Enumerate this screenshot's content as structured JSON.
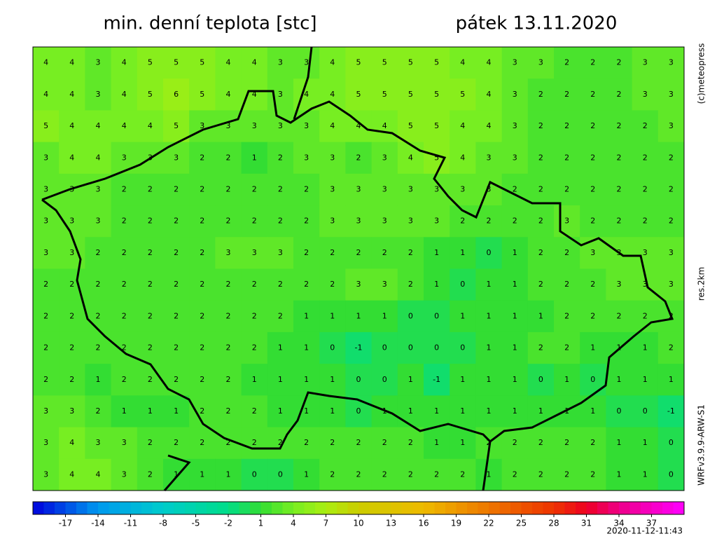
{
  "header": {
    "title": "min. denní teplota [stc]",
    "date": "pátek 13.11.2020"
  },
  "side": {
    "copyright": "(c)meteopress",
    "resolution": "res.2km",
    "model": "WRFv3.9.9-ARW-S1"
  },
  "map": {
    "grid": [
      [
        4,
        4,
        3,
        4,
        5,
        5,
        5,
        4,
        4,
        3,
        3,
        4,
        5,
        5,
        5,
        5,
        4,
        4,
        3,
        3,
        2,
        2,
        2,
        3,
        3
      ],
      [
        4,
        4,
        3,
        4,
        5,
        6,
        5,
        4,
        4,
        3,
        4,
        4,
        5,
        5,
        5,
        5,
        5,
        4,
        3,
        2,
        2,
        2,
        2,
        3,
        3
      ],
      [
        5,
        4,
        4,
        4,
        4,
        5,
        3,
        3,
        3,
        3,
        3,
        4,
        4,
        4,
        5,
        5,
        4,
        4,
        3,
        2,
        2,
        2,
        2,
        2,
        3
      ],
      [
        3,
        4,
        4,
        3,
        3,
        3,
        2,
        2,
        1,
        2,
        3,
        3,
        2,
        3,
        4,
        5,
        4,
        3,
        3,
        2,
        2,
        2,
        2,
        2,
        2
      ],
      [
        3,
        3,
        3,
        2,
        2,
        2,
        2,
        2,
        2,
        2,
        2,
        3,
        3,
        3,
        3,
        3,
        3,
        3,
        2,
        2,
        2,
        2,
        2,
        2,
        2
      ],
      [
        3,
        3,
        3,
        2,
        2,
        2,
        2,
        2,
        2,
        2,
        2,
        3,
        3,
        3,
        3,
        3,
        2,
        2,
        2,
        2,
        3,
        2,
        2,
        2,
        2
      ],
      [
        3,
        3,
        2,
        2,
        2,
        2,
        2,
        3,
        3,
        3,
        2,
        2,
        2,
        2,
        2,
        1,
        1,
        0,
        1,
        2,
        2,
        3,
        3,
        3,
        3
      ],
      [
        2,
        2,
        2,
        2,
        2,
        2,
        2,
        2,
        2,
        2,
        2,
        2,
        3,
        3,
        2,
        1,
        0,
        1,
        1,
        2,
        2,
        2,
        3,
        3,
        3
      ],
      [
        2,
        2,
        2,
        2,
        2,
        2,
        2,
        2,
        2,
        2,
        1,
        1,
        1,
        1,
        0,
        0,
        1,
        1,
        1,
        1,
        2,
        2,
        2,
        2,
        2
      ],
      [
        2,
        2,
        2,
        2,
        2,
        2,
        2,
        2,
        2,
        1,
        1,
        0,
        -1,
        0,
        0,
        0,
        0,
        1,
        1,
        2,
        2,
        1,
        1,
        1,
        2
      ],
      [
        2,
        2,
        1,
        2,
        2,
        2,
        2,
        2,
        1,
        1,
        1,
        1,
        0,
        0,
        1,
        -1,
        1,
        1,
        1,
        0,
        1,
        0,
        1,
        1,
        1
      ],
      [
        3,
        3,
        2,
        1,
        1,
        1,
        2,
        2,
        2,
        1,
        1,
        1,
        0,
        1,
        1,
        1,
        1,
        1,
        1,
        1,
        1,
        1,
        0,
        0,
        -1
      ],
      [
        3,
        4,
        3,
        3,
        2,
        2,
        2,
        2,
        2,
        2,
        2,
        2,
        2,
        2,
        2,
        1,
        1,
        2,
        2,
        2,
        2,
        2,
        1,
        1,
        0
      ],
      [
        3,
        4,
        4,
        3,
        2,
        1,
        1,
        1,
        0,
        0,
        1,
        2,
        2,
        2,
        2,
        2,
        2,
        1,
        2,
        2,
        2,
        2,
        1,
        1,
        0
      ]
    ]
  },
  "colorbar": {
    "lim": [
      -20,
      40
    ],
    "ticks": [
      -17,
      -14,
      -11,
      -8,
      -5,
      -2,
      1,
      4,
      7,
      10,
      13,
      16,
      19,
      22,
      25,
      28,
      31,
      34,
      37
    ],
    "stops": [
      {
        "value": -20,
        "color": "#0000dd"
      },
      {
        "value": -14,
        "color": "#0099ee"
      },
      {
        "value": -8,
        "color": "#00cccc"
      },
      {
        "value": -2,
        "color": "#00dd88"
      },
      {
        "value": 1,
        "color": "#33dd33"
      },
      {
        "value": 4,
        "color": "#77ee22"
      },
      {
        "value": 7,
        "color": "#aaee11"
      },
      {
        "value": 10,
        "color": "#cccc00"
      },
      {
        "value": 16,
        "color": "#eebb00"
      },
      {
        "value": 22,
        "color": "#ee7700"
      },
      {
        "value": 28,
        "color": "#ee3300"
      },
      {
        "value": 31,
        "color": "#ee0022"
      },
      {
        "value": 34,
        "color": "#ee0088"
      },
      {
        "value": 40,
        "color": "#ff00ff"
      }
    ]
  },
  "footer": {
    "timestamp": "2020-11-12-11:43"
  }
}
